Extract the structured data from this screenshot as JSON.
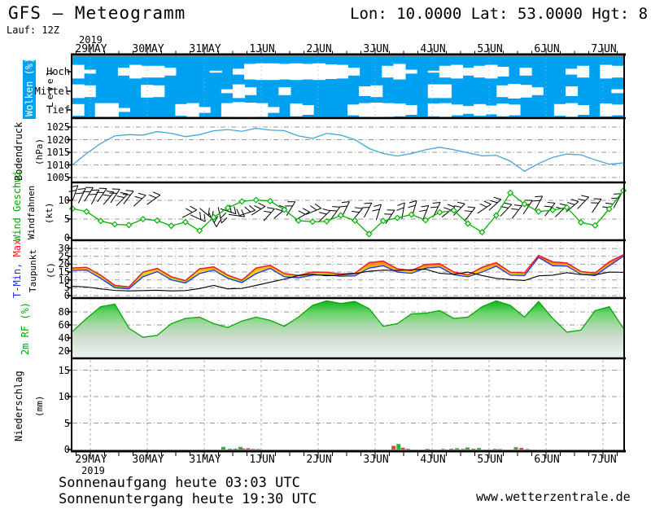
{
  "header": {
    "title": "GFS – Meteogramm",
    "coords": "Lon: 10.0000 Lat: 53.0000 Hgt: 8",
    "run": "Lauf: 12Z"
  },
  "x_axis": {
    "year": "2019",
    "labels": [
      "29MAY",
      "30MAY",
      "31MAY",
      "1JUN",
      "2JUN",
      "3JUN",
      "4JUN",
      "5JUN",
      "6JUN",
      "7JUN"
    ]
  },
  "panels": {
    "clouds": {
      "label": "Wolken (%)",
      "level_label": "Level",
      "levels": [
        "Hoch",
        "Mittel",
        "Tief"
      ],
      "color": "#00a1f1"
    },
    "pressure": {
      "label": "Bodendruck",
      "unit": "(hPa)",
      "ticks": [
        1025,
        1020,
        1015,
        1010,
        1005
      ],
      "color": "#3fa7dc"
    },
    "wind": {
      "label": "Wind Geschwi.",
      "sub_label": "Windfahnen",
      "unit": "(kt)",
      "ticks": [
        10,
        5,
        0
      ],
      "color": "#00b400"
    },
    "temp": {
      "label_min": "T-Min,",
      "label_max": " Max",
      "sub_label": "Taupunkt",
      "unit": "(C)",
      "ticks": [
        30,
        25,
        20,
        15,
        10,
        5,
        0
      ],
      "color_min": "#2233ee",
      "color_max": "#ee2222"
    },
    "rh": {
      "label": "2m RF (%)",
      "ticks": [
        80,
        60,
        40,
        20
      ],
      "color": "#00aa00"
    },
    "precip": {
      "label": "Niederschlag",
      "unit": "(mm)",
      "ticks": [
        15,
        10,
        5,
        0
      ],
      "color_total": "#2fb52f",
      "color_conv": "#e04a30"
    }
  },
  "footer": {
    "sunrise": "Sonnenaufgang heute 03:03 UTC",
    "sunset": "Sonnenuntergang heute 19:30 UTC",
    "site": "www.wetterzentrale.de"
  },
  "chart_data": [
    {
      "type": "heatmap",
      "title": "Wolken (%)",
      "levels": [
        "Hoch",
        "Mittel",
        "Tief"
      ],
      "unit": "%",
      "coverage": {
        "hoch": [
          30,
          80,
          100,
          100,
          60,
          30,
          40,
          40,
          60,
          100,
          100,
          100,
          90,
          100,
          70,
          20,
          15,
          15,
          20,
          15,
          20,
          15,
          25,
          30,
          60,
          100,
          100,
          40,
          20,
          80,
          100,
          90,
          40,
          30,
          60,
          40,
          30,
          50,
          100,
          60,
          100,
          100,
          100,
          70,
          40,
          100,
          30,
          40
        ],
        "mittel": [
          30,
          40,
          100,
          100,
          100,
          100,
          35,
          40,
          100,
          100,
          100,
          100,
          100,
          80,
          30,
          60,
          100,
          100,
          60,
          100,
          100,
          100,
          100,
          100,
          100,
          50,
          40,
          100,
          100,
          100,
          100,
          30,
          30,
          100,
          100,
          100,
          100,
          40,
          25,
          35,
          60,
          100,
          100,
          50,
          100,
          100,
          100,
          80
        ],
        "tief": [
          40,
          100,
          30,
          30,
          80,
          100,
          100,
          100,
          100,
          40,
          30,
          70,
          100,
          30,
          20,
          25,
          30,
          70,
          100,
          35,
          50,
          100,
          100,
          100,
          45,
          30,
          25,
          30,
          35,
          50,
          100,
          35,
          30,
          45,
          60,
          40,
          55,
          35,
          45,
          100,
          100,
          100,
          40,
          30,
          50,
          100,
          35,
          45
        ]
      }
    },
    {
      "type": "line",
      "title": "Bodendruck",
      "ylabel": "hPa",
      "ylim": [
        1002.5,
        1027.5
      ],
      "yticks": [
        1005,
        1010,
        1015,
        1020,
        1025
      ],
      "values": [
        1010,
        1014.5,
        1018.5,
        1021.5,
        1022,
        1021.8,
        1023.2,
        1022.5,
        1021.2,
        1022,
        1023.5,
        1024,
        1023.3,
        1024.5,
        1023.8,
        1023.6,
        1021.5,
        1020.5,
        1022.5,
        1021.8,
        1020,
        1016.5,
        1014.5,
        1013.5,
        1014.5,
        1016,
        1017,
        1016,
        1014.8,
        1013.6,
        1013.8,
        1011.5,
        1007.5,
        1010.5,
        1013,
        1014.3,
        1014,
        1012,
        1010.3,
        1010.8
      ]
    },
    {
      "type": "line",
      "title": "Wind Geschwi. / Windfahnen",
      "ylabel": "kt",
      "ylim": [
        0,
        15
      ],
      "yticks": [
        0,
        5,
        10
      ],
      "values": [
        7.8,
        7,
        4.5,
        3.6,
        3.4,
        5,
        4.6,
        3.2,
        4.2,
        1.9,
        5.5,
        8,
        9.7,
        10.1,
        9.8,
        7.5,
        4.6,
        4.3,
        4.4,
        6,
        4.6,
        1,
        4.5,
        5.3,
        6.2,
        4.7,
        6.8,
        7.3,
        3.8,
        1.5,
        6,
        12,
        9,
        7,
        7.4,
        8.1,
        4.1,
        3.3,
        7.7,
        12.6
      ],
      "barbs": [
        [
          0.004,
          11.5,
          -70
        ],
        [
          0.016,
          10.8,
          -64
        ],
        [
          0.028,
          11.2,
          -58
        ],
        [
          0.04,
          10.5,
          -62
        ],
        [
          0.052,
          11,
          -55
        ],
        [
          0.064,
          10.2,
          -50
        ],
        [
          0.076,
          10.8,
          -56
        ],
        [
          0.088,
          9.8,
          -46
        ],
        [
          0.1,
          10.4,
          -52
        ],
        [
          0.12,
          9.6,
          -42
        ],
        [
          0.145,
          9.9,
          -36
        ],
        [
          0.21,
          6.2,
          -28
        ],
        [
          0.225,
          5.4,
          25
        ],
        [
          0.24,
          6.8,
          40
        ],
        [
          0.253,
          5.2,
          62
        ],
        [
          0.267,
          6.5,
          78
        ],
        [
          0.28,
          7.2,
          18
        ],
        [
          0.295,
          6,
          8
        ],
        [
          0.315,
          6.5,
          -18
        ],
        [
          0.335,
          7,
          -32
        ],
        [
          0.355,
          5.8,
          -48
        ],
        [
          0.375,
          6.3,
          -40
        ],
        [
          0.395,
          7.4,
          -58
        ],
        [
          0.415,
          5.6,
          -30
        ],
        [
          0.435,
          6.9,
          -22
        ],
        [
          0.455,
          5.4,
          -44
        ],
        [
          0.475,
          6.1,
          -54
        ],
        [
          0.495,
          7.3,
          -64
        ],
        [
          0.515,
          5.8,
          -50
        ],
        [
          0.535,
          7,
          -62
        ],
        [
          0.555,
          6.4,
          -72
        ],
        [
          0.575,
          5.2,
          -56
        ],
        [
          0.6,
          6.8,
          -80
        ],
        [
          0.62,
          7.4,
          -74
        ],
        [
          0.64,
          6.2,
          -68
        ],
        [
          0.66,
          7.1,
          -64
        ],
        [
          0.68,
          6.6,
          -38
        ],
        [
          0.7,
          7.2,
          -46
        ],
        [
          0.72,
          6,
          -52
        ],
        [
          0.745,
          7.5,
          -34
        ],
        [
          0.765,
          8.5,
          -42
        ],
        [
          0.785,
          7,
          -46
        ],
        [
          0.805,
          6.5,
          -52
        ],
        [
          0.825,
          7.8,
          -56
        ],
        [
          0.845,
          8.8,
          -62
        ],
        [
          0.865,
          7.2,
          -52
        ],
        [
          0.885,
          6.8,
          -44
        ],
        [
          0.905,
          8,
          -40
        ],
        [
          0.925,
          9,
          -46
        ],
        [
          0.95,
          8.2,
          -56
        ],
        [
          0.97,
          7,
          -50
        ],
        [
          0.988,
          9.5,
          -62
        ]
      ]
    },
    {
      "type": "area",
      "title": "T-Min, Max / Taupunkt",
      "ylabel": "C",
      "ylim": [
        -2,
        34
      ],
      "yticks": [
        0,
        5,
        10,
        15,
        20,
        25,
        30
      ],
      "series": [
        {
          "name": "tmax",
          "values": [
            17.5,
            18,
            13,
            6.5,
            5.5,
            15,
            17.3,
            12,
            9.5,
            17,
            18.3,
            13,
            9.8,
            17.5,
            19.3,
            14,
            12.8,
            15,
            14.8,
            13.8,
            14.2,
            21,
            22,
            17,
            16,
            19.8,
            20.3,
            15,
            13.2,
            18,
            21,
            14.8,
            14.5,
            25.5,
            21.5,
            20.8,
            15.3,
            14.3,
            21.5,
            26
          ]
        },
        {
          "name": "tmin",
          "values": [
            16,
            16.3,
            11,
            5,
            4.3,
            12,
            15.3,
            10,
            8,
            14,
            16.3,
            11,
            8.3,
            14,
            17.3,
            12,
            11.3,
            13,
            13.2,
            12.3,
            12.6,
            17.5,
            19,
            15,
            14.2,
            17.5,
            18.2,
            13.3,
            12,
            15,
            18.7,
            13,
            12.8,
            24.3,
            19,
            18.8,
            13.6,
            12.8,
            19,
            25
          ]
        },
        {
          "name": "taupunkt",
          "values": [
            6,
            5.5,
            4.3,
            3.3,
            3,
            3.2,
            3.4,
            3,
            3.2,
            4.5,
            6.5,
            4.3,
            4.6,
            6.5,
            8.5,
            10.5,
            12.8,
            13.6,
            12.6,
            13.2,
            14,
            15.5,
            16.2,
            16,
            16.5,
            16.8,
            14.2,
            13.6,
            15,
            12.8,
            11,
            10.2,
            9.6,
            12.6,
            13,
            14.6,
            13.4,
            13.2,
            15,
            14.8
          ]
        }
      ]
    },
    {
      "type": "area",
      "title": "2m RF (%)",
      "ylabel": "%",
      "ylim": [
        0,
        100
      ],
      "yticks": [
        20,
        40,
        60,
        80
      ],
      "values": [
        50,
        70,
        88,
        92,
        55,
        41,
        44,
        62,
        70,
        72,
        62,
        56,
        66,
        72,
        67,
        58,
        72,
        90,
        97,
        93,
        96,
        85,
        58,
        62,
        77,
        78,
        82,
        70,
        72,
        88,
        97,
        90,
        72,
        96,
        70,
        49,
        52,
        82,
        88,
        55
      ]
    },
    {
      "type": "bar",
      "title": "Niederschlag",
      "ylabel": "mm",
      "ylim": [
        0,
        17.3
      ],
      "yticks": [
        0,
        5,
        10,
        15
      ],
      "bars": [
        [
          0.274,
          0.5,
          "g"
        ],
        [
          0.286,
          0.15,
          "g"
        ],
        [
          0.296,
          0.15,
          "r"
        ],
        [
          0.305,
          0.5,
          "g"
        ],
        [
          0.31,
          0.2,
          "r"
        ],
        [
          0.319,
          0.25,
          "r"
        ],
        [
          0.328,
          0.12,
          "g"
        ],
        [
          0.337,
          0.1,
          "r"
        ],
        [
          0.583,
          0.7,
          "r"
        ],
        [
          0.592,
          1.05,
          "g"
        ],
        [
          0.6,
          0.35,
          "r"
        ],
        [
          0.609,
          0.15,
          "g"
        ],
        [
          0.644,
          0.12,
          "r"
        ],
        [
          0.673,
          0.1,
          "r"
        ],
        [
          0.688,
          0.15,
          "r"
        ],
        [
          0.698,
          0.25,
          "g"
        ],
        [
          0.709,
          0.12,
          "r"
        ],
        [
          0.717,
          0.4,
          "g"
        ],
        [
          0.728,
          0.15,
          "r"
        ],
        [
          0.738,
          0.3,
          "g"
        ],
        [
          0.767,
          0.12,
          "r"
        ],
        [
          0.776,
          0.1,
          "g"
        ],
        [
          0.805,
          0.45,
          "g"
        ],
        [
          0.815,
          0.3,
          "r"
        ],
        [
          0.826,
          0.1,
          "r"
        ]
      ]
    }
  ]
}
